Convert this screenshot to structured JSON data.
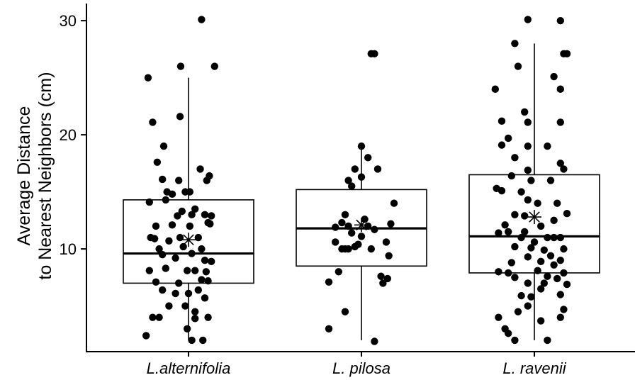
{
  "chart_data": {
    "type": "box",
    "title": "",
    "xlabel": "",
    "ylabel_lines": [
      "Average Distance",
      "to Nearest Neighbors (cm)"
    ],
    "ylim": [
      1,
      31.5
    ],
    "yticks": [
      10,
      20,
      30
    ],
    "grid": false,
    "categories": [
      "L.alternifolia",
      "L. pilosa",
      "L. ravenii"
    ],
    "boxes": [
      {
        "category": "L.alternifolia",
        "whisker_low": 2,
        "q1": 7.0,
        "median": 9.6,
        "q3": 14.3,
        "whisker_high": 25,
        "mean": 10.8
      },
      {
        "category": "L. pilosa",
        "whisker_low": 2,
        "q1": 8.5,
        "median": 11.8,
        "q3": 15.2,
        "whisker_high": 19,
        "mean": 12.1
      },
      {
        "category": "L. ravenii",
        "whisker_low": 2,
        "q1": 7.9,
        "median": 11.1,
        "q3": 16.5,
        "whisker_high": 28,
        "mean": 12.8
      }
    ],
    "points": [
      [
        [
          -0.62,
          25.0
        ],
        [
          0.2,
          30.1
        ],
        [
          -0.12,
          26.0
        ],
        [
          0.4,
          26.0
        ],
        [
          -0.13,
          21.6
        ],
        [
          -0.55,
          21.1
        ],
        [
          -0.38,
          19.0
        ],
        [
          -0.48,
          17.6
        ],
        [
          0.18,
          17.0
        ],
        [
          0.32,
          16.4
        ],
        [
          -0.4,
          16.1
        ],
        [
          0.28,
          16.0
        ],
        [
          -0.15,
          16.0
        ],
        [
          -0.6,
          14.1
        ],
        [
          -0.33,
          15.0
        ],
        [
          -0.25,
          14.8
        ],
        [
          -0.05,
          15.0
        ],
        [
          0.02,
          15.0
        ],
        [
          -0.35,
          14.3
        ],
        [
          0.05,
          13.0
        ],
        [
          -0.1,
          13.3
        ],
        [
          0.1,
          13.5
        ],
        [
          -0.17,
          12.9
        ],
        [
          0.25,
          13.0
        ],
        [
          0.35,
          12.9
        ],
        [
          -0.5,
          12.0
        ],
        [
          0.02,
          12.0
        ],
        [
          0.3,
          12.3
        ],
        [
          0.33,
          12.2
        ],
        [
          -0.58,
          11.0
        ],
        [
          -0.52,
          10.9
        ],
        [
          -0.3,
          10.7
        ],
        [
          -0.13,
          11.0
        ],
        [
          -0.08,
          10.2
        ],
        [
          0.2,
          10.0
        ],
        [
          -0.45,
          10.0
        ],
        [
          -0.4,
          9.5
        ],
        [
          -0.2,
          9.2
        ],
        [
          0.05,
          9.6
        ],
        [
          0.25,
          9.0
        ],
        [
          0.35,
          8.9
        ],
        [
          -0.6,
          8.1
        ],
        [
          -0.35,
          8.3
        ],
        [
          0.1,
          8.1
        ],
        [
          -0.02,
          8.1
        ],
        [
          0.27,
          8.0
        ],
        [
          0.2,
          7.3
        ],
        [
          0.3,
          7.2
        ],
        [
          -0.5,
          7.1
        ],
        [
          -0.4,
          6.4
        ],
        [
          -0.15,
          7.0
        ],
        [
          0.0,
          6.1
        ],
        [
          0.15,
          6.4
        ],
        [
          0.25,
          5.7
        ],
        [
          -0.3,
          5.0
        ],
        [
          -0.05,
          5.0
        ],
        [
          0.1,
          4.5
        ],
        [
          0.3,
          4.0
        ],
        [
          -0.55,
          4.0
        ],
        [
          -0.45,
          4.0
        ],
        [
          0.1,
          3.9
        ],
        [
          -0.02,
          3.0
        ],
        [
          -0.65,
          2.4
        ],
        [
          0.05,
          2.0
        ],
        [
          0.22,
          2.0
        ],
        [
          -0.2,
          6.1
        ],
        [
          0.15,
          11.0
        ],
        [
          -0.25,
          12.1
        ]
      ],
      [
        [
          0.15,
          27.1
        ],
        [
          0.2,
          27.1
        ],
        [
          0.0,
          19.0
        ],
        [
          0.1,
          18.0
        ],
        [
          0.25,
          17.0
        ],
        [
          -0.1,
          17.0
        ],
        [
          0.0,
          16.3
        ],
        [
          -0.2,
          16.0
        ],
        [
          -0.15,
          15.5
        ],
        [
          0.5,
          14.0
        ],
        [
          -0.25,
          13.0
        ],
        [
          -0.3,
          12.3
        ],
        [
          -0.2,
          12.0
        ],
        [
          0.1,
          12.0
        ],
        [
          0.45,
          12.2
        ],
        [
          0.2,
          11.7
        ],
        [
          -0.4,
          11.9
        ],
        [
          0.0,
          11.1
        ],
        [
          -0.4,
          10.6
        ],
        [
          0.38,
          10.6
        ],
        [
          0.15,
          10.0
        ],
        [
          -0.2,
          10.0
        ],
        [
          -0.25,
          10.0
        ],
        [
          -0.3,
          10.0
        ],
        [
          -0.1,
          10.2
        ],
        [
          0.42,
          9.4
        ],
        [
          -0.35,
          8.0
        ],
        [
          0.3,
          7.6
        ],
        [
          0.4,
          7.4
        ],
        [
          0.33,
          7.0
        ],
        [
          -0.5,
          7.1
        ],
        [
          -0.25,
          4.5
        ],
        [
          -0.5,
          3.0
        ],
        [
          0.2,
          1.9
        ],
        [
          -0.15,
          11.4
        ],
        [
          0.05,
          12.6
        ],
        [
          -0.05,
          10.4
        ]
      ],
      [
        [
          -0.1,
          30.1
        ],
        [
          0.4,
          30.0
        ],
        [
          -0.3,
          28.0
        ],
        [
          0.45,
          27.1
        ],
        [
          0.5,
          27.1
        ],
        [
          -0.25,
          26.0
        ],
        [
          0.3,
          25.1
        ],
        [
          0.4,
          24.0
        ],
        [
          -0.6,
          24.0
        ],
        [
          -0.15,
          22.0
        ],
        [
          -0.5,
          21.2
        ],
        [
          -0.1,
          21.1
        ],
        [
          0.4,
          21.1
        ],
        [
          -0.4,
          19.7
        ],
        [
          -0.1,
          19.0
        ],
        [
          0.2,
          19.0
        ],
        [
          -0.5,
          19.1
        ],
        [
          -0.3,
          18.0
        ],
        [
          0.4,
          17.5
        ],
        [
          -0.1,
          16.9
        ],
        [
          0.45,
          17.0
        ],
        [
          -0.35,
          16.4
        ],
        [
          -0.05,
          16.0
        ],
        [
          0.25,
          16.0
        ],
        [
          -0.58,
          15.3
        ],
        [
          -0.5,
          15.1
        ],
        [
          -0.2,
          15.0
        ],
        [
          -0.1,
          14.3
        ],
        [
          0.05,
          14.0
        ],
        [
          0.35,
          14.0
        ],
        [
          0.5,
          13.1
        ],
        [
          -0.3,
          13.0
        ],
        [
          -0.45,
          12.1
        ],
        [
          0.1,
          12.0
        ],
        [
          -0.15,
          11.5
        ],
        [
          -0.55,
          11.4
        ],
        [
          -0.4,
          11.5
        ],
        [
          -0.2,
          11.0
        ],
        [
          0.2,
          11.0
        ],
        [
          0.3,
          11.0
        ],
        [
          0.4,
          11.0
        ],
        [
          -0.3,
          10.2
        ],
        [
          -0.05,
          10.1
        ],
        [
          0.0,
          10.6
        ],
        [
          0.15,
          9.9
        ],
        [
          0.45,
          10.0
        ],
        [
          -0.1,
          9.3
        ],
        [
          0.25,
          9.4
        ],
        [
          0.4,
          9.0
        ],
        [
          -0.35,
          8.8
        ],
        [
          0.1,
          8.9
        ],
        [
          0.3,
          8.6
        ],
        [
          -0.55,
          8.0
        ],
        [
          -0.4,
          7.9
        ],
        [
          0.05,
          8.1
        ],
        [
          0.45,
          7.9
        ],
        [
          -0.3,
          7.5
        ],
        [
          0.2,
          7.6
        ],
        [
          0.15,
          7.0
        ],
        [
          0.35,
          7.4
        ],
        [
          -0.1,
          7.0
        ],
        [
          0.5,
          6.9
        ],
        [
          -0.2,
          5.9
        ],
        [
          0.1,
          6.5
        ],
        [
          0.4,
          6.0
        ],
        [
          -0.05,
          5.8
        ],
        [
          -0.25,
          4.5
        ],
        [
          0.45,
          4.7
        ],
        [
          0.4,
          4.0
        ],
        [
          -0.55,
          4.0
        ],
        [
          0.1,
          3.7
        ],
        [
          -0.45,
          3.0
        ],
        [
          -0.4,
          2.6
        ],
        [
          -0.3,
          2.0
        ],
        [
          0.2,
          2.0
        ],
        [
          -0.1,
          5.0
        ],
        [
          0.3,
          12.5
        ],
        [
          -0.15,
          12.9
        ]
      ]
    ]
  }
}
